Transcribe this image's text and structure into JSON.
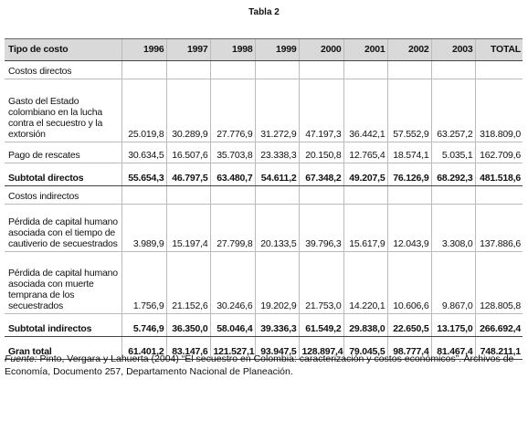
{
  "title": "Tabla 2",
  "table": {
    "header": [
      "Tipo de costo",
      "1996",
      "1997",
      "1998",
      "1999",
      "2000",
      "2001",
      "2002",
      "2003",
      "TOTAL"
    ],
    "rows": [
      [
        "Costos directos"
      ],
      [
        "Gasto del Estado colombiano en la lucha contra el secuestro y la extorsión",
        "25.019,8",
        "30.289,9",
        "27.776,9",
        "31.272,9",
        "47.197,3",
        "36.442,1",
        "57.552,9",
        "63.257,2",
        "318.809,0"
      ],
      [
        "Pago de rescates",
        "30.634,5",
        "16.507,6",
        "35.703,8",
        "23.338,3",
        "20.150,8",
        "12.765,4",
        "18.574,1",
        "5.035,1",
        "162.709,6"
      ],
      [
        "Subtotal directos",
        "55.654,3",
        "46.797,5",
        "63.480,7",
        "54.611,2",
        "67.348,2",
        "49.207,5",
        "76.126,9",
        "68.292,3",
        "481.518,6"
      ],
      [
        "Costos indirectos"
      ],
      [
        "Pérdida de capital humano asociada con el tiempo de cautiverio de secuestrados",
        "3.989,9",
        "15.197,4",
        "27.799,8",
        "20.133,5",
        "39.796,3",
        "15.617,9",
        "12.043,9",
        "3.308,0",
        "137.886,6"
      ],
      [
        "Pérdida de capital humano asociada con muerte temprana de los secuestrados",
        "1.756,9",
        "21.152,6",
        "30.246,6",
        "19.202,9",
        "21.753,0",
        "14.220,1",
        "10.606,6",
        "9.867,0",
        "128.805,8"
      ],
      [
        "Subtotal indirectos",
        "5.746,9",
        "36.350,0",
        "58.046,4",
        "39.336,3",
        "61.549,2",
        "29.838,0",
        "22.650,5",
        "13.175,0",
        "266.692,4"
      ],
      [
        "Gran total",
        "61.401,2",
        "83.147,6",
        "121.527,1",
        "93.947,5",
        "128.897,4",
        "79.045,5",
        "98.777,4",
        "81.467,4",
        "748.211,1"
      ]
    ]
  },
  "footnote": {
    "label": "Fuente:",
    "text": "Pinto, Vergara y Lahuerta (2004) “El secuestro en Colombia: caracterización y costos económicos”. Archivos de Economía, Documento 257, Departamento Nacional de Planeación."
  }
}
